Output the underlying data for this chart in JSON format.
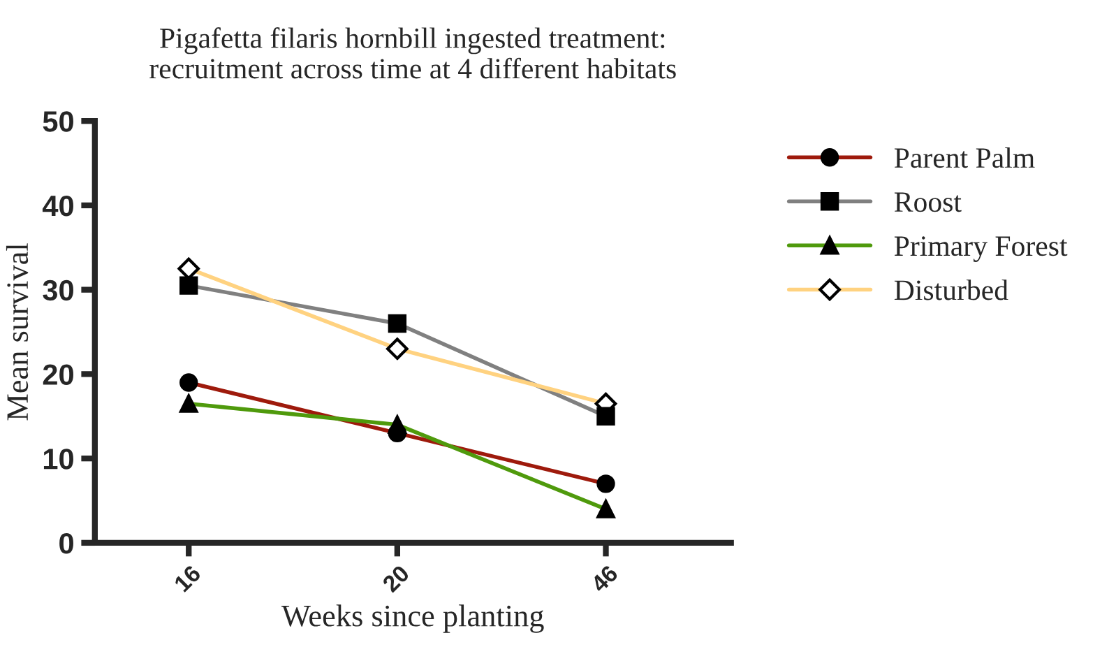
{
  "chart_data": {
    "type": "line",
    "title": "Pigafetta filaris hornbill ingested treatment:\nrecruitment across time at 4 different habitats",
    "xlabel": "Weeks since planting",
    "ylabel": "Mean survival",
    "categories": [
      "16",
      "20",
      "46"
    ],
    "series": [
      {
        "name": "Parent Palm",
        "color": "#9e1a0c",
        "marker": "circle",
        "values": [
          19,
          13,
          7
        ]
      },
      {
        "name": "Roost",
        "color": "#808080",
        "marker": "square",
        "values": [
          30.5,
          26,
          15
        ]
      },
      {
        "name": "Primary Forest",
        "color": "#4f9a0c",
        "marker": "triangle",
        "values": [
          16.5,
          14,
          4
        ]
      },
      {
        "name": "Disturbed",
        "color": "#ffd280",
        "marker": "diamond",
        "values": [
          32.5,
          23,
          16.5
        ]
      }
    ],
    "ylim": [
      0,
      50
    ],
    "yticks": [
      0,
      10,
      20,
      30,
      40,
      50
    ],
    "grid": false,
    "legend": "right",
    "line_style": "solid"
  }
}
